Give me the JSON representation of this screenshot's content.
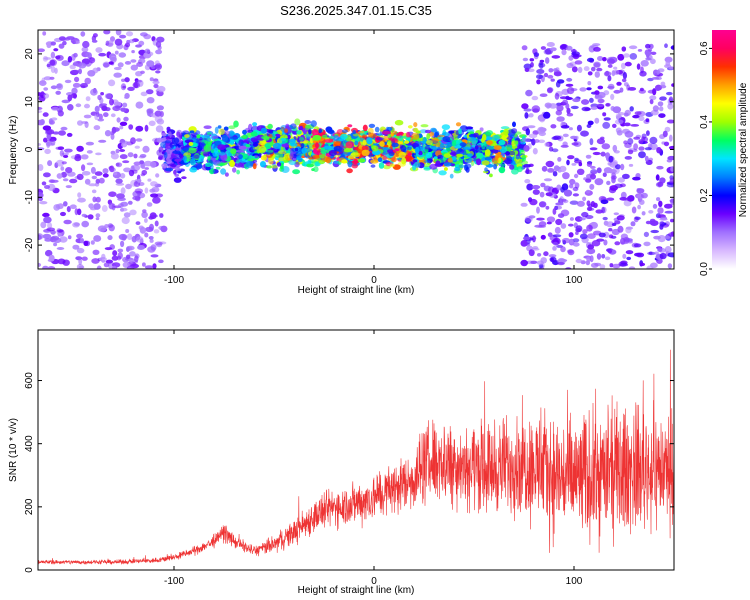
{
  "figure": {
    "title": "S236.2025.347.01.15.C35"
  },
  "chart_data": [
    {
      "type": "heatmap",
      "xlabel": "Height of straight line (km)",
      "ylabel": "Frequency (Hz)",
      "xlim": [
        -168,
        150
      ],
      "ylim": [
        -25,
        25
      ],
      "xticks": [
        -100,
        0,
        100
      ],
      "yticks": [
        -20,
        -10,
        0,
        10,
        20
      ],
      "colorbar": {
        "label": "Normalized spectral amplitude",
        "range": [
          0.0,
          0.65
        ],
        "ticks": [
          0.0,
          0.2,
          0.4,
          0.6
        ],
        "tick_labels": [
          "0.0",
          "0.2",
          "0.4",
          "0.6"
        ],
        "colormap": [
          "#ffffff",
          "#d8b8ff",
          "#a070ff",
          "#6a00ff",
          "#0000ff",
          "#0080ff",
          "#00e5ff",
          "#00ff60",
          "#a0ff00",
          "#ffff00",
          "#ffa000",
          "#ff3000",
          "#ff0060",
          "#ff0090"
        ]
      },
      "regions": [
        {
          "x_range": [
            -168,
            -105
          ],
          "freq_range": [
            -25,
            25
          ],
          "amplitude": 0.08
        },
        {
          "x_range": [
            -105,
            -95
          ],
          "freq_range": [
            -6,
            5
          ],
          "amplitude": 0.15
        },
        {
          "x_range": [
            -95,
            -60
          ],
          "freq_range": [
            -5,
            5
          ],
          "amplitude": 0.25
        },
        {
          "x_range": [
            -60,
            -30
          ],
          "freq_range": [
            -4,
            6
          ],
          "amplitude": 0.32
        },
        {
          "x_range": [
            -30,
            20
          ],
          "freq_range": [
            -4,
            5
          ],
          "amplitude": 0.45
        },
        {
          "x_range": [
            20,
            75
          ],
          "freq_range": [
            -5,
            5
          ],
          "amplitude": 0.3
        },
        {
          "x_range": [
            75,
            150
          ],
          "freq_range": [
            -25,
            22
          ],
          "amplitude": 0.1
        }
      ]
    },
    {
      "type": "line",
      "xlabel": "Height of straight line (km)",
      "ylabel": "SNR (10 * v/v)",
      "xlim": [
        -168,
        150
      ],
      "ylim": [
        0,
        760
      ],
      "xticks": [
        -100,
        0,
        100
      ],
      "yticks": [
        0,
        200,
        400,
        600
      ],
      "color": "#ee3333",
      "series": [
        {
          "x": [
            -168,
            -150,
            -130,
            -110,
            -100,
            -90,
            -80,
            -75,
            -70,
            -60,
            -50,
            -40,
            -30,
            -20,
            -10,
            0,
            10,
            20,
            25,
            30,
            40,
            50,
            60,
            70,
            80,
            90,
            100,
            110,
            120,
            130,
            140,
            150
          ],
          "y": [
            25,
            25,
            25,
            30,
            40,
            60,
            90,
            120,
            90,
            60,
            80,
            120,
            170,
            200,
            210,
            230,
            260,
            290,
            330,
            350,
            340,
            330,
            320,
            340,
            330,
            300,
            290,
            300,
            310,
            320,
            320,
            320
          ],
          "spread": [
            10,
            10,
            10,
            12,
            15,
            20,
            30,
            40,
            30,
            25,
            40,
            60,
            80,
            90,
            100,
            110,
            120,
            140,
            180,
            200,
            200,
            200,
            210,
            230,
            260,
            280,
            300,
            300,
            300,
            290,
            280,
            250
          ]
        }
      ]
    }
  ]
}
